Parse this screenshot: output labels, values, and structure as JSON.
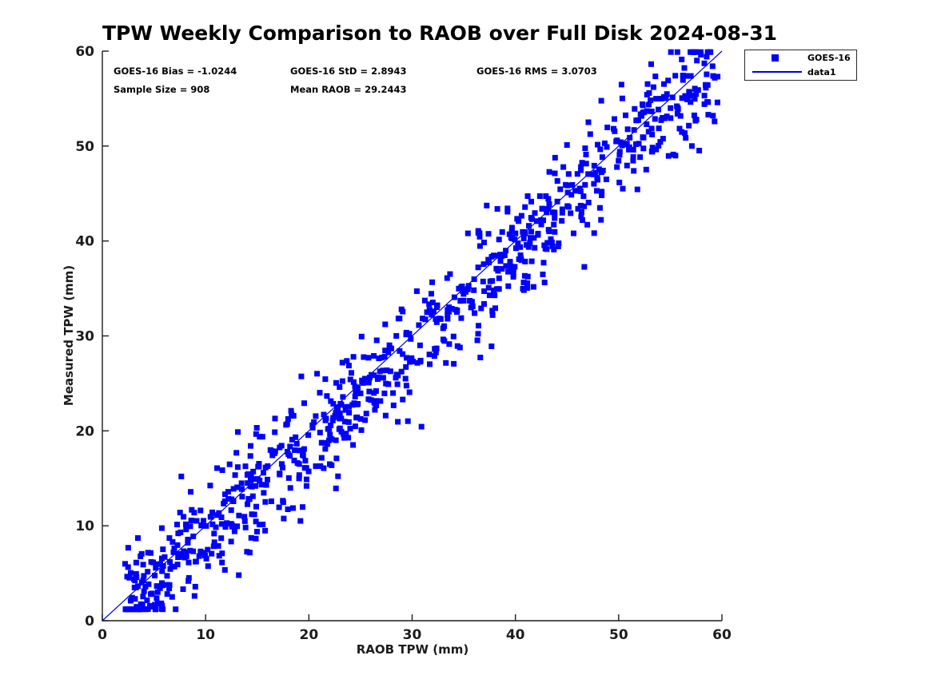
{
  "figure": {
    "title": "TPW Weekly Comparison to RAOB over Full Disk 2024-08-31"
  },
  "annotations": {
    "bias": "GOES-16 Bias = -1.0244",
    "std": "GOES-16 StD = 2.8943",
    "rms": "GOES-16 RMS = 3.0703",
    "sample_size": "Sample Size = 908",
    "mean_raob": "Mean RAOB = 29.2443"
  },
  "legend": {
    "entries": [
      {
        "label": "GOES-16",
        "marker": "blue-filled-square"
      },
      {
        "label": "data1",
        "marker": "blue-line"
      }
    ]
  },
  "colors": {
    "marker": "#0000ff",
    "reference_line": "#0000dd",
    "axis": "#1c1c1c",
    "text": "#000000",
    "legend_border": "#2a2a2a"
  },
  "chart_data": {
    "type": "scatter",
    "title": "TPW Weekly Comparison to RAOB over Full Disk 2024-08-31",
    "xlabel": "RAOB TPW (mm)",
    "ylabel": "Measured TPW (mm)",
    "xlim": [
      0,
      60
    ],
    "ylim": [
      0,
      60
    ],
    "xticks": [
      0,
      10,
      20,
      30,
      40,
      50,
      60
    ],
    "yticks": [
      0,
      10,
      20,
      30,
      40,
      50,
      60
    ],
    "grid": false,
    "legend_position": "outside-top-right",
    "series": [
      {
        "name": "GOES-16",
        "marker": "filled-square",
        "marker_size": 7,
        "color": "#0000ff",
        "sample_size": 908,
        "bias": -1.0244,
        "std": 2.8943,
        "rms": 3.0703,
        "mean_raob": 29.2443,
        "x_range": [
          2.2,
          59.7
        ],
        "y_clip": [
          1.2,
          59.9
        ]
      }
    ],
    "reference_line": {
      "name": "data1",
      "from": [
        0,
        0
      ],
      "to": [
        60,
        60
      ],
      "color": "#0000dd"
    }
  }
}
